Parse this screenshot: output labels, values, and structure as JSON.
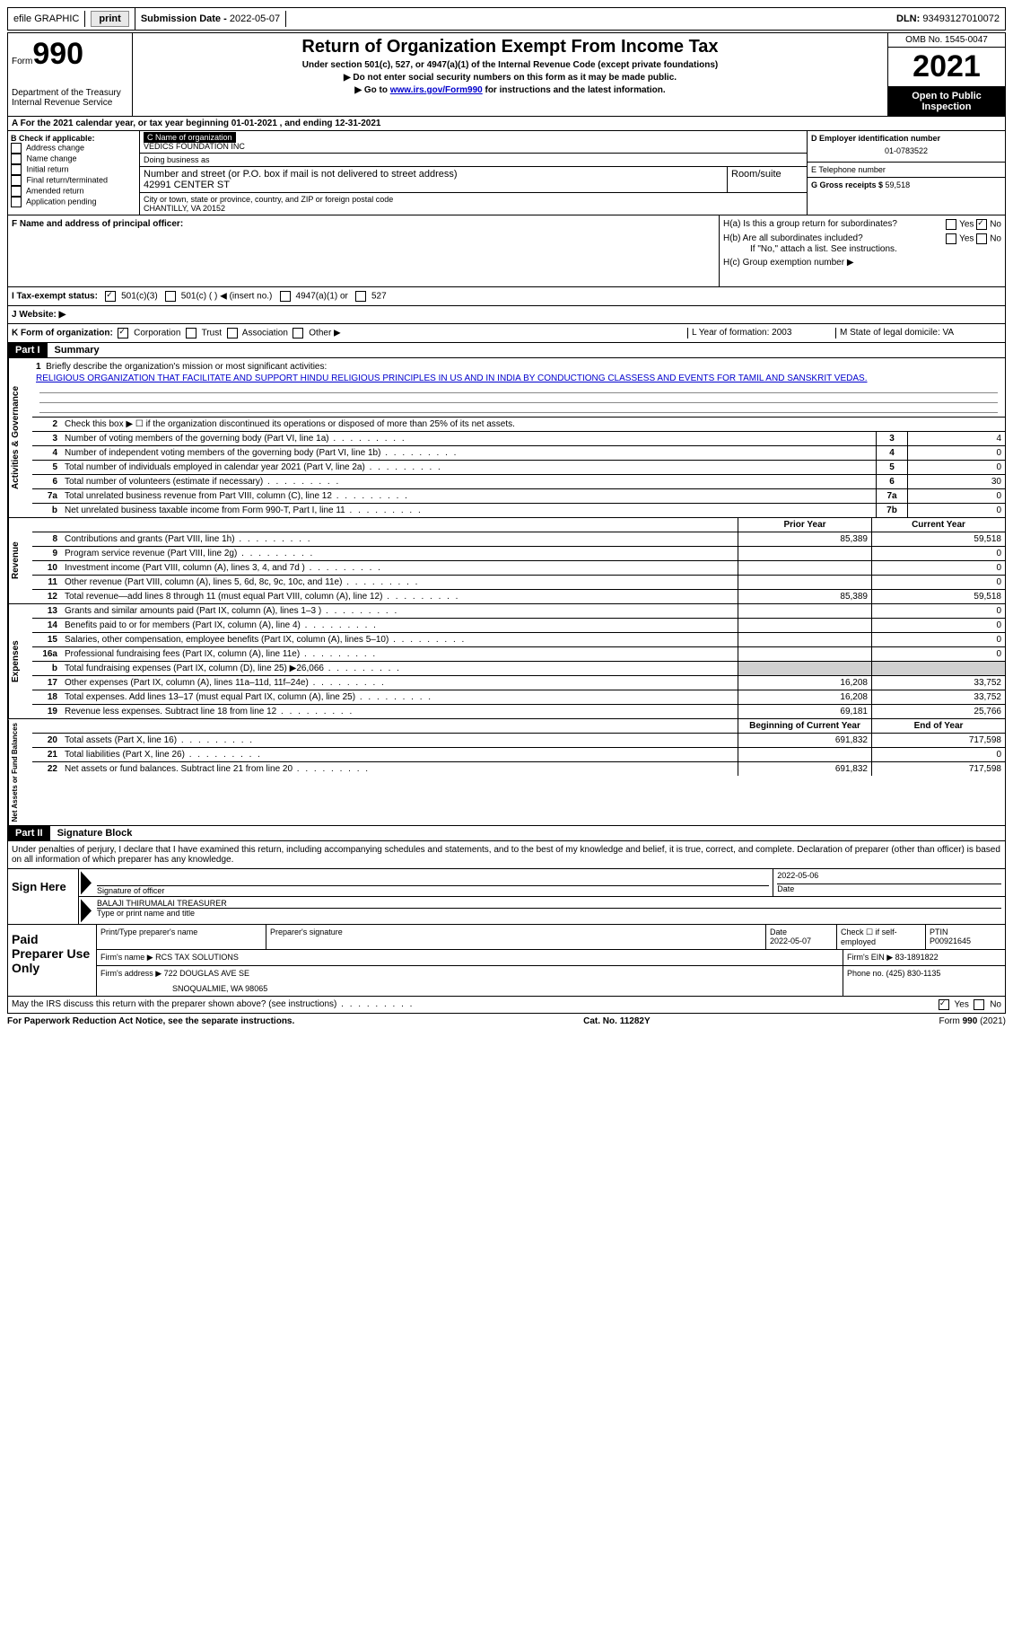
{
  "topbar": {
    "efile_label": "efile GRAPHIC",
    "print_btn": "print",
    "submission_label": "Submission Date - ",
    "submission_date": "2022-05-07",
    "dln_label": "DLN: ",
    "dln": "93493127010072"
  },
  "header": {
    "form_word": "Form",
    "form_num": "990",
    "dept": "Department of the Treasury\nInternal Revenue Service",
    "title": "Return of Organization Exempt From Income Tax",
    "subtitle1": "Under section 501(c), 527, or 4947(a)(1) of the Internal Revenue Code (except private foundations)",
    "subtitle2": "▶ Do not enter social security numbers on this form as it may be made public.",
    "subtitle3_pre": "▶ Go to ",
    "subtitle3_link": "www.irs.gov/Form990",
    "subtitle3_post": " for instructions and the latest information.",
    "omb": "OMB No. 1545-0047",
    "year": "2021",
    "inspect": "Open to Public Inspection"
  },
  "section_a": "A For the 2021 calendar year, or tax year beginning 01-01-2021   , and ending 12-31-2021",
  "section_b": {
    "title": "B Check if applicable:",
    "opts": [
      "Address change",
      "Name change",
      "Initial return",
      "Final return/terminated",
      "Amended return",
      "Application pending"
    ]
  },
  "section_c": {
    "name_label": "C Name of organization",
    "name": "VEDICS FOUNDATION INC",
    "dba_label": "Doing business as",
    "addr_label": "Number and street (or P.O. box if mail is not delivered to street address)",
    "room_label": "Room/suite",
    "addr": "42991 CENTER ST",
    "city_label": "City or town, state or province, country, and ZIP or foreign postal code",
    "city": "CHANTILLY, VA  20152"
  },
  "section_de": {
    "d_label": "D Employer identification number",
    "d_val": "01-0783522",
    "e_label": "E Telephone number",
    "g_label": "G Gross receipts $ ",
    "g_val": "59,518"
  },
  "section_f": "F  Name and address of principal officer:",
  "section_h": {
    "ha": "H(a)  Is this a group return for subordinates?",
    "hb": "H(b)  Are all subordinates included?",
    "hb_note": "If \"No,\" attach a list. See instructions.",
    "hc": "H(c)  Group exemption number ▶",
    "yes": "Yes",
    "no": "No"
  },
  "section_i": {
    "label": "I   Tax-exempt status:",
    "o1": "501(c)(3)",
    "o2": "501(c) (  ) ◀ (insert no.)",
    "o3": "4947(a)(1) or",
    "o4": "527"
  },
  "section_j": "J   Website: ▶",
  "section_k": {
    "label": "K Form of organization:",
    "o1": "Corporation",
    "o2": "Trust",
    "o3": "Association",
    "o4": "Other ▶",
    "l": "L Year of formation: 2003",
    "m": "M State of legal domicile: VA"
  },
  "part1": {
    "tag": "Part I",
    "title": "Summary",
    "vtab1": "Activities & Governance",
    "vtab2": "Revenue",
    "vtab3": "Expenses",
    "vtab4": "Net Assets or Fund Balances",
    "q1": "Briefly describe the organization's mission or most significant activities:",
    "q1_val": "RELIGIOUS ORGANIZATION THAT FACILITATE AND SUPPORT HINDU RELIGIOUS PRINCIPLES IN US AND IN INDIA BY CONDUCTIONG CLASSESS AND EVENTS FOR TAMIL AND SANSKRIT VEDAS.",
    "q2": "Check this box ▶ ☐  if the organization discontinued its operations or disposed of more than 25% of its net assets.",
    "rows_ag": [
      {
        "n": "3",
        "d": "Number of voting members of the governing body (Part VI, line 1a)",
        "box": "3",
        "v": "4"
      },
      {
        "n": "4",
        "d": "Number of independent voting members of the governing body (Part VI, line 1b)",
        "box": "4",
        "v": "0"
      },
      {
        "n": "5",
        "d": "Total number of individuals employed in calendar year 2021 (Part V, line 2a)",
        "box": "5",
        "v": "0"
      },
      {
        "n": "6",
        "d": "Total number of volunteers (estimate if necessary)",
        "box": "6",
        "v": "30"
      },
      {
        "n": "7a",
        "d": "Total unrelated business revenue from Part VIII, column (C), line 12",
        "box": "7a",
        "v": "0"
      },
      {
        "n": "b",
        "d": "Net unrelated business taxable income from Form 990-T, Part I, line 11",
        "box": "7b",
        "v": "0"
      }
    ],
    "hdr_prior": "Prior Year",
    "hdr_current": "Current Year",
    "rows_rev": [
      {
        "n": "8",
        "d": "Contributions and grants (Part VIII, line 1h)",
        "p": "85,389",
        "c": "59,518"
      },
      {
        "n": "9",
        "d": "Program service revenue (Part VIII, line 2g)",
        "p": "",
        "c": "0"
      },
      {
        "n": "10",
        "d": "Investment income (Part VIII, column (A), lines 3, 4, and 7d )",
        "p": "",
        "c": "0"
      },
      {
        "n": "11",
        "d": "Other revenue (Part VIII, column (A), lines 5, 6d, 8c, 9c, 10c, and 11e)",
        "p": "",
        "c": "0"
      },
      {
        "n": "12",
        "d": "Total revenue—add lines 8 through 11 (must equal Part VIII, column (A), line 12)",
        "p": "85,389",
        "c": "59,518"
      }
    ],
    "rows_exp": [
      {
        "n": "13",
        "d": "Grants and similar amounts paid (Part IX, column (A), lines 1–3 )",
        "p": "",
        "c": "0"
      },
      {
        "n": "14",
        "d": "Benefits paid to or for members (Part IX, column (A), line 4)",
        "p": "",
        "c": "0"
      },
      {
        "n": "15",
        "d": "Salaries, other compensation, employee benefits (Part IX, column (A), lines 5–10)",
        "p": "",
        "c": "0"
      },
      {
        "n": "16a",
        "d": "Professional fundraising fees (Part IX, column (A), line 11e)",
        "p": "",
        "c": "0"
      },
      {
        "n": "b",
        "d": "Total fundraising expenses (Part IX, column (D), line 25) ▶26,066",
        "p": "shade",
        "c": "shade"
      },
      {
        "n": "17",
        "d": "Other expenses (Part IX, column (A), lines 11a–11d, 11f–24e)",
        "p": "16,208",
        "c": "33,752"
      },
      {
        "n": "18",
        "d": "Total expenses. Add lines 13–17 (must equal Part IX, column (A), line 25)",
        "p": "16,208",
        "c": "33,752"
      },
      {
        "n": "19",
        "d": "Revenue less expenses. Subtract line 18 from line 12",
        "p": "69,181",
        "c": "25,766"
      }
    ],
    "hdr_boy": "Beginning of Current Year",
    "hdr_eoy": "End of Year",
    "rows_net": [
      {
        "n": "20",
        "d": "Total assets (Part X, line 16)",
        "p": "691,832",
        "c": "717,598"
      },
      {
        "n": "21",
        "d": "Total liabilities (Part X, line 26)",
        "p": "",
        "c": "0"
      },
      {
        "n": "22",
        "d": "Net assets or fund balances. Subtract line 21 from line 20",
        "p": "691,832",
        "c": "717,598"
      }
    ]
  },
  "part2": {
    "tag": "Part II",
    "title": "Signature Block",
    "decl": "Under penalties of perjury, I declare that I have examined this return, including accompanying schedules and statements, and to the best of my knowledge and belief, it is true, correct, and complete. Declaration of preparer (other than officer) is based on all information of which preparer has any knowledge.",
    "sign_here": "Sign Here",
    "sig_officer": "Signature of officer",
    "sig_date_label": "Date",
    "sig_date": "2022-05-06",
    "name_title": "BALAJI THIRUMALAI TREASURER",
    "name_label": "Type or print name and title",
    "paid": "Paid Preparer Use Only",
    "prep_name_label": "Print/Type preparer's name",
    "prep_sig_label": "Preparer's signature",
    "prep_date_label": "Date",
    "prep_date": "2022-05-07",
    "check_self": "Check ☐ if self-employed",
    "ptin_label": "PTIN",
    "ptin": "P00921645",
    "firm_name_label": "Firm's name    ▶ ",
    "firm_name": "RCS TAX SOLUTIONS",
    "firm_ein_label": "Firm's EIN ▶ ",
    "firm_ein": "83-1891822",
    "firm_addr_label": "Firm's address ▶ ",
    "firm_addr": "722 DOUGLAS AVE SE",
    "firm_city": "SNOQUALMIE, WA  98065",
    "phone_label": "Phone no. ",
    "phone": "(425) 830-1135"
  },
  "footer": {
    "discuss": "May the IRS discuss this return with the preparer shown above? (see instructions)",
    "yes": "Yes",
    "no": "No",
    "notice": "For Paperwork Reduction Act Notice, see the separate instructions.",
    "cat": "Cat. No. 11282Y",
    "form": "Form 990 (2021)"
  }
}
